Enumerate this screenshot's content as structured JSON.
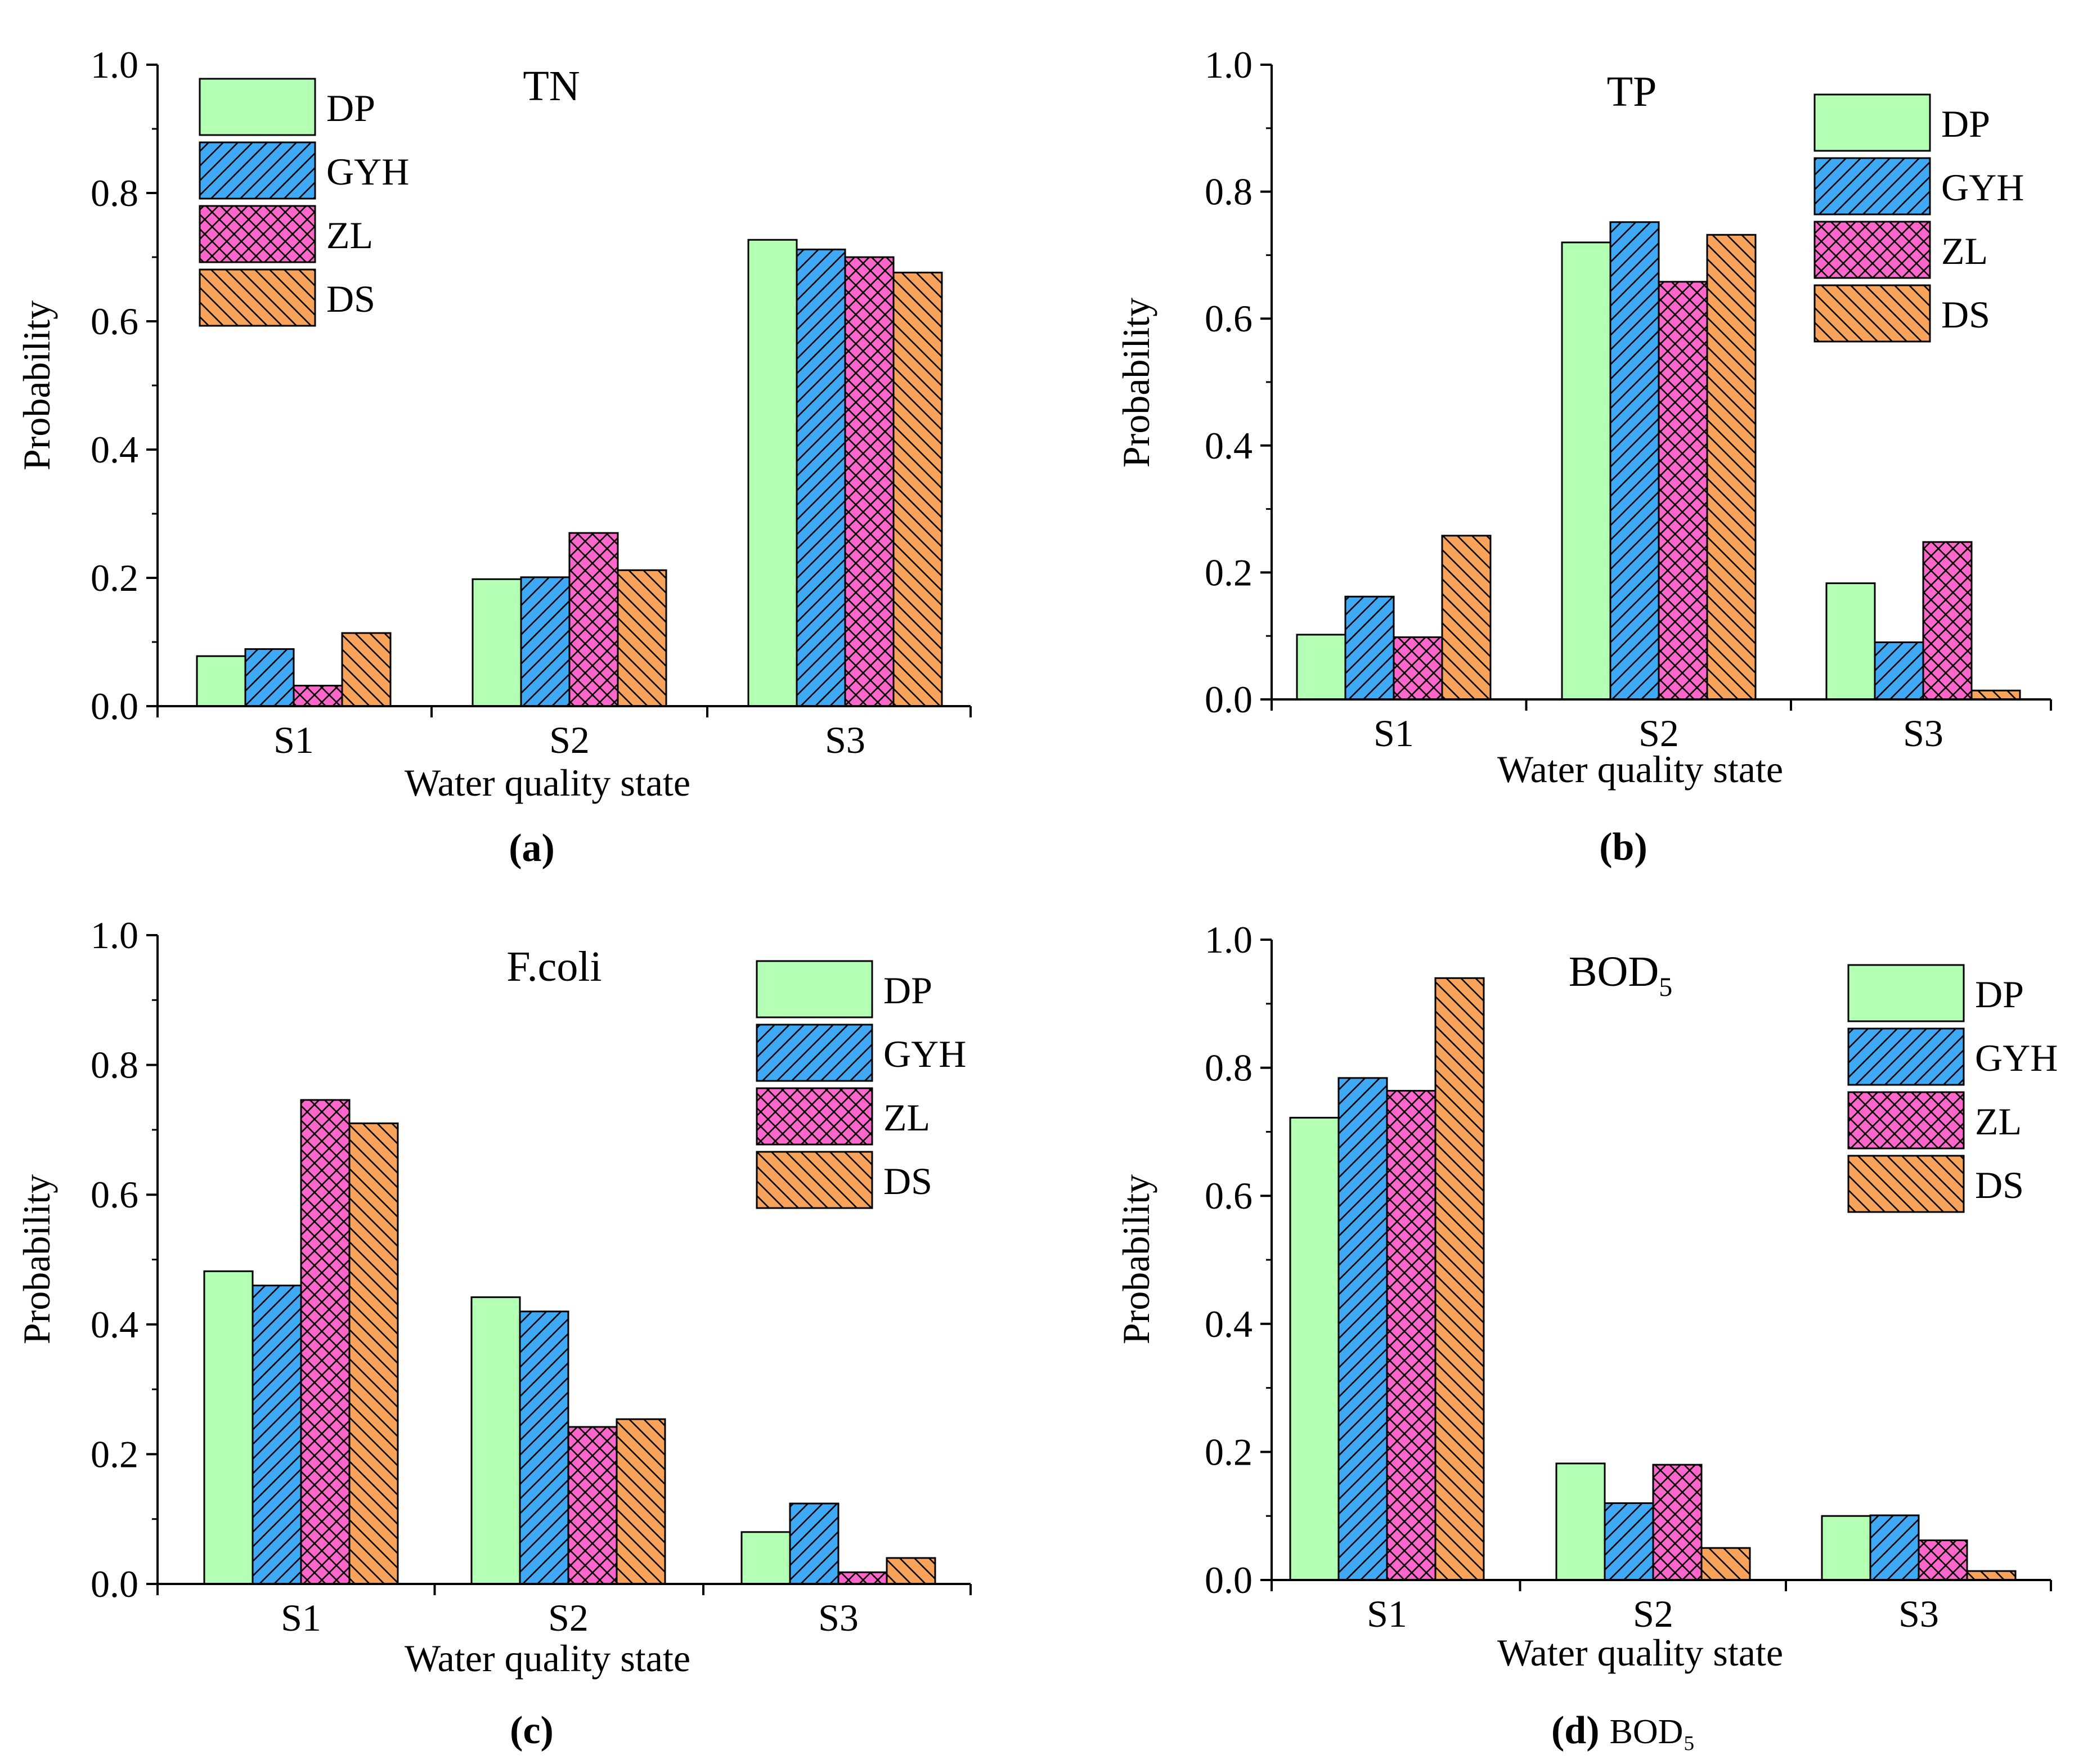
{
  "colors": {
    "DP": "#b3ffb3",
    "GYH": "#3fa9f5",
    "ZL": "#ff66cc",
    "DS": "#f7a35c"
  },
  "patterns": {
    "DP": "none",
    "GYH": "diag-up",
    "ZL": "crosshatch",
    "DS": "diag-down"
  },
  "chart_data": [
    {
      "type": "bar",
      "panel": "(a)",
      "caption_bold": "(a)",
      "caption_extra": "",
      "title": "TN",
      "title_sub": "",
      "xlabel": "Water quality state",
      "ylabel": "Probability",
      "ylim": [
        0,
        1.0
      ],
      "yticks": [
        "0.0",
        "0.2",
        "0.4",
        "0.6",
        "0.8",
        "1.0"
      ],
      "legend_position": "top-left",
      "categories": [
        "S1",
        "S2",
        "S3"
      ],
      "series": [
        {
          "name": "DP",
          "values": [
            0.078,
            0.198,
            0.727
          ]
        },
        {
          "name": "GYH",
          "values": [
            0.089,
            0.201,
            0.712
          ]
        },
        {
          "name": "ZL",
          "values": [
            0.032,
            0.27,
            0.7
          ]
        },
        {
          "name": "DS",
          "values": [
            0.114,
            0.212,
            0.676
          ]
        }
      ]
    },
    {
      "type": "bar",
      "panel": "(b)",
      "caption_bold": "(b)",
      "caption_extra": "",
      "title": "TP",
      "title_sub": "",
      "xlabel": "Water quality state",
      "ylabel": "Probability",
      "ylim": [
        0,
        1.0
      ],
      "yticks": [
        "0.0",
        "0.2",
        "0.4",
        "0.6",
        "0.8",
        "1.0"
      ],
      "legend_position": "top-right",
      "categories": [
        "S1",
        "S2",
        "S3"
      ],
      "series": [
        {
          "name": "DP",
          "values": [
            0.102,
            0.72,
            0.183
          ]
        },
        {
          "name": "GYH",
          "values": [
            0.162,
            0.752,
            0.09
          ]
        },
        {
          "name": "ZL",
          "values": [
            0.098,
            0.658,
            0.248
          ]
        },
        {
          "name": "DS",
          "values": [
            0.258,
            0.732,
            0.014
          ]
        }
      ]
    },
    {
      "type": "bar",
      "panel": "(c)",
      "caption_bold": "(c)",
      "caption_extra": "",
      "title": "F.coli",
      "title_sub": "",
      "xlabel": "Water quality state",
      "ylabel": "Probability",
      "ylim": [
        0,
        1.0
      ],
      "yticks": [
        "0.0",
        "0.2",
        "0.4",
        "0.6",
        "0.8",
        "1.0"
      ],
      "legend_position": "top-right",
      "categories": [
        "S1",
        "S2",
        "S3"
      ],
      "series": [
        {
          "name": "DP",
          "values": [
            0.482,
            0.442,
            0.08
          ]
        },
        {
          "name": "GYH",
          "values": [
            0.46,
            0.42,
            0.124
          ]
        },
        {
          "name": "ZL",
          "values": [
            0.746,
            0.242,
            0.018
          ]
        },
        {
          "name": "DS",
          "values": [
            0.71,
            0.254,
            0.04
          ]
        }
      ]
    },
    {
      "type": "bar",
      "panel": "(d)",
      "caption_bold": "(d)",
      "caption_extra": "BOD₅",
      "title": "BOD",
      "title_sub": "5",
      "xlabel": "Water quality state",
      "ylabel": "Probability",
      "ylim": [
        0,
        1.0
      ],
      "yticks": [
        "0.0",
        "0.2",
        "0.4",
        "0.6",
        "0.8",
        "1.0"
      ],
      "legend_position": "top-right",
      "categories": [
        "S1",
        "S2",
        "S3"
      ],
      "series": [
        {
          "name": "DP",
          "values": [
            0.722,
            0.182,
            0.1
          ]
        },
        {
          "name": "GYH",
          "values": [
            0.784,
            0.12,
            0.101
          ]
        },
        {
          "name": "ZL",
          "values": [
            0.764,
            0.18,
            0.062
          ]
        },
        {
          "name": "DS",
          "values": [
            0.94,
            0.05,
            0.014
          ]
        }
      ]
    }
  ]
}
